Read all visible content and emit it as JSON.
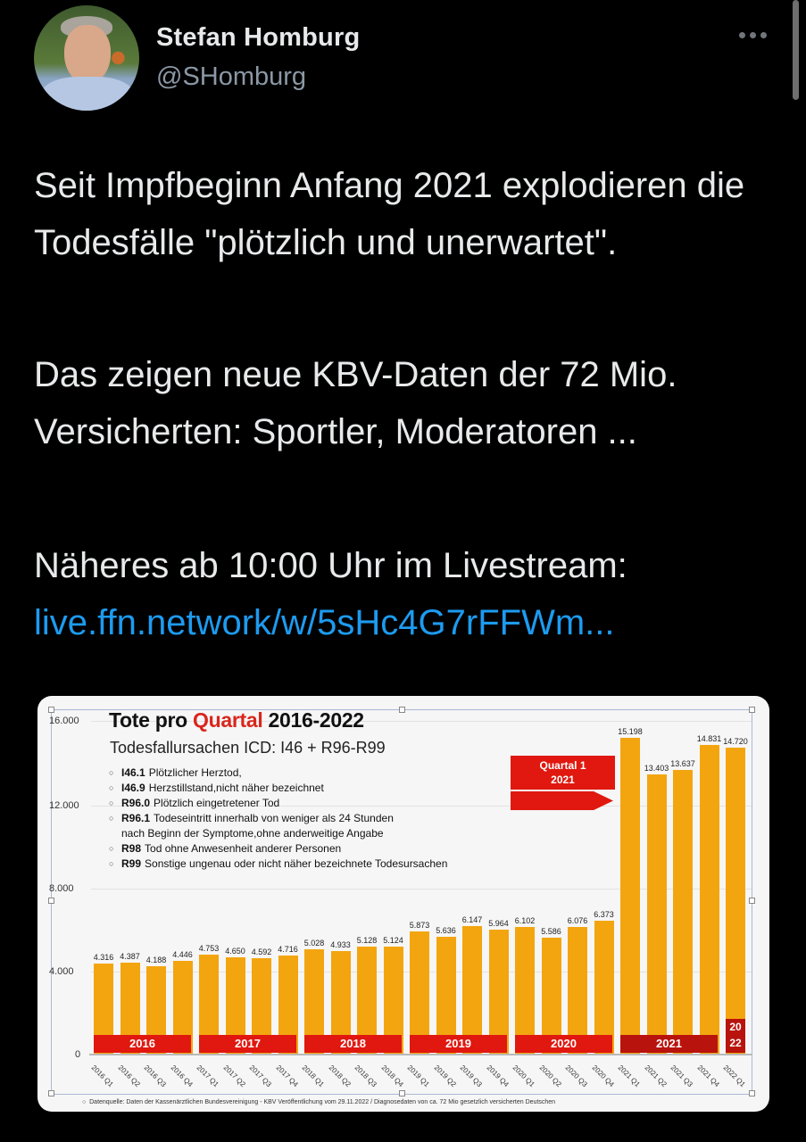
{
  "tweet": {
    "author_name": "Stefan Homburg",
    "author_handle": "@SHomburg",
    "more_icon": "ellipsis-icon",
    "paragraphs": [
      "Seit Impfbeginn Anfang 2021 explodieren die Todesfälle \"plötzlich und unerwartet\".",
      "Das zeigen neue KBV-Daten der 72 Mio. Versicherten: Sportler, Moderatoren ...",
      "Näheres ab 10:00 Uhr im Livestream:"
    ],
    "link": "live.ffn.network/w/5sHc4G7rFFWm..."
  },
  "colors": {
    "background": "#000000",
    "text": "#e7e9ea",
    "handle": "#8b98a5",
    "link": "#1d9bf0",
    "bar": "#f3a50f",
    "year_band": "#e0180f",
    "year_band_dark": "#b8130c",
    "title_highlight": "#d9261c"
  },
  "chart": {
    "title_prefix": "Tote pro ",
    "title_highlight": "Quartal",
    "title_suffix": " 2016-2022",
    "subtitle": "Todesfallursachen ICD: I46 + R96-R99",
    "legend": [
      {
        "code": "I46.1",
        "text": "Plötzlicher Herztod,"
      },
      {
        "code": "I46.9",
        "text": "Herzstillstand,nicht näher bezeichnet"
      },
      {
        "code": "R96.0",
        "text": "Plötzlich eingetretener Tod"
      },
      {
        "code": "R96.1",
        "text": "Todeseintritt innerhalb von weniger als 24 Stunden"
      },
      {
        "code": "",
        "text": "nach Beginn der Symptome,ohne anderweitige Angabe"
      },
      {
        "code": "R98",
        "text": "Tod ohne Anwesenheit anderer Personen"
      },
      {
        "code": "R99",
        "text": "Sonstige ungenau oder nicht näher bezeichnete Todesursachen"
      }
    ],
    "callout_line1": "Quartal 1",
    "callout_line2": "2021",
    "yticks": [
      "16.000",
      "12.000",
      "8.000",
      "4.000",
      "0"
    ],
    "years": [
      "2016",
      "2017",
      "2018",
      "2019",
      "2020",
      "2021"
    ],
    "year_2022_top": "20",
    "year_2022_bottom": "22",
    "source": "Datenquelle: Daten der Kassenärztlichen Bundesvereinigung - KBV Veröffentlichung vom 29.11.2022 / Diagnosedaten von ca. 72 Mio gesetzlich versicherten Deutschen"
  },
  "chart_data": {
    "type": "bar",
    "title": "Tote pro Quartal 2016-2022",
    "subtitle": "Todesfallursachen ICD: I46 + R96-R99",
    "xlabel": "",
    "ylabel": "",
    "ylim": [
      0,
      16000
    ],
    "yticks": [
      0,
      4000,
      8000,
      12000,
      16000
    ],
    "grid": true,
    "categories": [
      "2016 Q1",
      "2016 Q2",
      "2016 Q3",
      "2016 Q4",
      "2017 Q1",
      "2017 Q2",
      "2017 Q3",
      "2017 Q4",
      "2018 Q1",
      "2018 Q2",
      "2018 Q3",
      "2018 Q4",
      "2019 Q1",
      "2019 Q2",
      "2019 Q3",
      "2019 Q4",
      "2020 Q1",
      "2020 Q2",
      "2020 Q3",
      "2020 Q4",
      "2021 Q1",
      "2021 Q2",
      "2021 Q3",
      "2021 Q4",
      "2022 Q1"
    ],
    "values": [
      4316,
      4387,
      4188,
      4446,
      4753,
      4650,
      4592,
      4716,
      5028,
      4933,
      5128,
      5124,
      5873,
      5636,
      6147,
      5964,
      6102,
      5586,
      6076,
      6373,
      15198,
      13403,
      13637,
      14831,
      14720
    ],
    "value_labels": [
      "4.316",
      "4.387",
      "4.188",
      "4.446",
      "4.753",
      "4.650",
      "4.592",
      "4.716",
      "5.028",
      "4.933",
      "5.128",
      "5.124",
      "5.873",
      "5.636",
      "6.147",
      "5.964",
      "6.102",
      "5.586",
      "6.076",
      "6.373",
      "15.198",
      "13.403",
      "13.637",
      "14.831",
      "14.720"
    ],
    "annotations": [
      "Quartal 1 2021"
    ],
    "legend_position": "top-left"
  }
}
